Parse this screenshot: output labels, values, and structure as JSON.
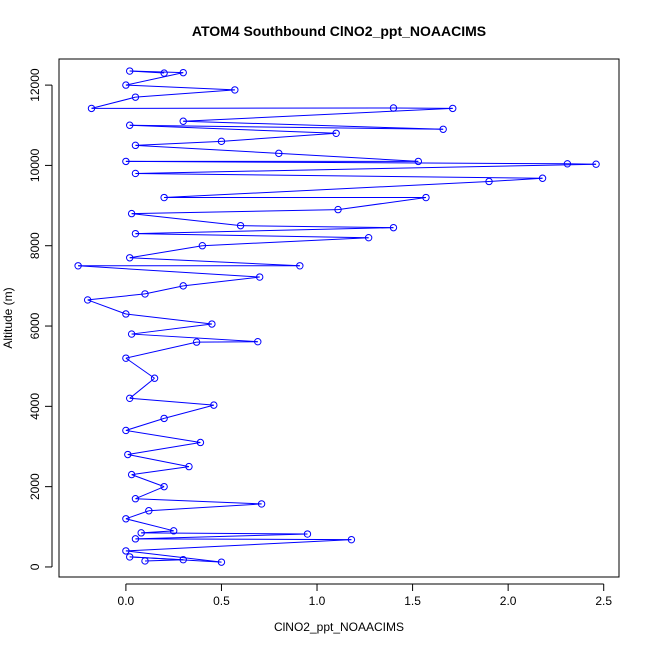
{
  "chart_data": {
    "type": "scatter",
    "title": "ATOM4 Southbound ClNO2_ppt_NOAACIMS",
    "xlabel": "ClNO2_ppt_NOAACIMS",
    "ylabel": "Altitude (m)",
    "xlim": [
      -0.35,
      2.58
    ],
    "ylim": [
      -250,
      12650
    ],
    "xticks": [
      0.0,
      0.5,
      1.0,
      1.5,
      2.0,
      2.5
    ],
    "xtick_labels": [
      "0.0",
      "0.5",
      "1.0",
      "1.5",
      "2.0",
      "2.5"
    ],
    "yticks": [
      0,
      2000,
      4000,
      6000,
      8000,
      10000,
      12000
    ],
    "ytick_labels": [
      "0",
      "2000",
      "4000",
      "6000",
      "8000",
      "10000",
      "12000"
    ],
    "series_color": "#0000ff",
    "marker": "open-circle",
    "connected": true,
    "series": [
      {
        "points": [
          [
            0.1,
            150
          ],
          [
            0.3,
            180
          ],
          [
            0.02,
            250
          ],
          [
            0.5,
            120
          ],
          [
            0.0,
            400
          ],
          [
            1.18,
            680
          ],
          [
            0.05,
            700
          ],
          [
            0.95,
            820
          ],
          [
            0.08,
            850
          ],
          [
            0.25,
            900
          ],
          [
            0.0,
            1200
          ],
          [
            0.12,
            1400
          ],
          [
            0.71,
            1570
          ],
          [
            0.05,
            1700
          ],
          [
            0.2,
            2000
          ],
          [
            0.03,
            2300
          ],
          [
            0.33,
            2500
          ],
          [
            0.01,
            2800
          ],
          [
            0.39,
            3100
          ],
          [
            0.0,
            3400
          ],
          [
            0.2,
            3700
          ],
          [
            0.46,
            4030
          ],
          [
            0.02,
            4200
          ],
          [
            0.15,
            4700
          ],
          [
            0.0,
            5200
          ],
          [
            0.37,
            5600
          ],
          [
            0.69,
            5610
          ],
          [
            0.03,
            5800
          ],
          [
            0.45,
            6050
          ],
          [
            0.0,
            6300
          ],
          [
            -0.2,
            6650
          ],
          [
            0.1,
            6800
          ],
          [
            0.3,
            7000
          ],
          [
            0.7,
            7220
          ],
          [
            -0.25,
            7500
          ],
          [
            0.91,
            7500
          ],
          [
            0.02,
            7700
          ],
          [
            0.4,
            8000
          ],
          [
            1.27,
            8200
          ],
          [
            0.05,
            8300
          ],
          [
            1.4,
            8450
          ],
          [
            0.6,
            8500
          ],
          [
            0.03,
            8800
          ],
          [
            1.11,
            8900
          ],
          [
            1.57,
            9200
          ],
          [
            0.2,
            9200
          ],
          [
            1.9,
            9600
          ],
          [
            2.18,
            9680
          ],
          [
            0.05,
            9800
          ],
          [
            2.46,
            10030
          ],
          [
            2.31,
            10040
          ],
          [
            0.0,
            10100
          ],
          [
            1.53,
            10100
          ],
          [
            0.8,
            10300
          ],
          [
            0.05,
            10500
          ],
          [
            0.5,
            10600
          ],
          [
            1.1,
            10800
          ],
          [
            0.02,
            11000
          ],
          [
            1.66,
            10900
          ],
          [
            0.3,
            11100
          ],
          [
            1.71,
            11420
          ],
          [
            1.4,
            11430
          ],
          [
            -0.18,
            11420
          ],
          [
            0.05,
            11700
          ],
          [
            0.57,
            11880
          ],
          [
            0.0,
            12000
          ],
          [
            0.3,
            12310
          ],
          [
            0.02,
            12350
          ],
          [
            0.2,
            12300
          ]
        ]
      }
    ]
  }
}
